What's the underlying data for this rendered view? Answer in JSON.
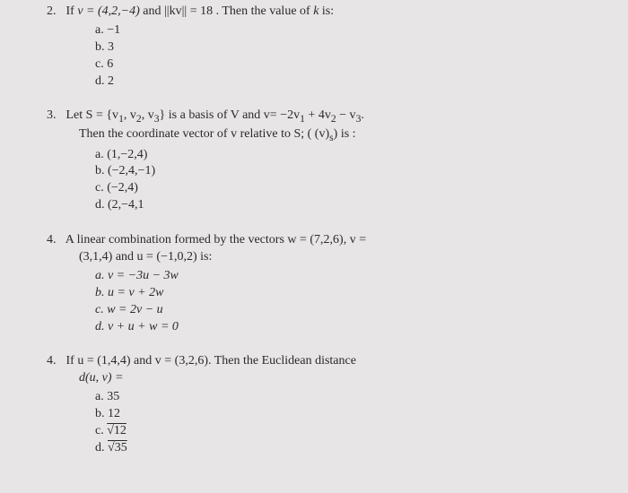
{
  "q2": {
    "number": "2.",
    "text_a": "If ",
    "v_eq": "v = (4,2,−4)",
    "text_b": " and ",
    "norm_eq": "||kv|| = 18",
    "text_c": " . Then the value of ",
    "kvar": "k",
    "text_d": " is:",
    "opts": {
      "a": "a.   −1",
      "b": "b.   3",
      "c": "c.   6",
      "d": "d.   2"
    }
  },
  "q3": {
    "number": "3.",
    "line1_a": "Let S = {v",
    "line1_b": ", v",
    "line1_c": ", v",
    "line1_d": "} is a basis of V and v= −2v",
    "line1_e": " + 4v",
    "line1_f": " − v",
    "line1_g": ".",
    "line2_a": "Then the coordinate vector of v relative to S; ( (v)",
    "line2_b": ") is :",
    "opts": {
      "a": "a.   (1,−2,4)",
      "b": "b.   (−2,4,−1)",
      "c": "c.   (−2,4)",
      "d": "d.   (2,−4,1"
    }
  },
  "q4a": {
    "number": "4.",
    "line1_a": "A linear combination formed by the vectors w = (7,2,6),   v =",
    "line2": "(3,1,4) and u = (−1,0,2) is:",
    "opts": {
      "a": "a.   v = −3u − 3w",
      "b": "b.   u = v + 2w",
      "c": "c.   w = 2v − u",
      "d": "d.   v + u + w = 0"
    }
  },
  "q4b": {
    "number": "4.",
    "line1_a": "If u = (1,4,4)  and  v = (3,2,6).  Then  the  Euclidean  distance",
    "line2": "d(u, v) =",
    "opts": {
      "a": "a.   35",
      "b": "b.   12",
      "c_pre": "c.   ",
      "c_sqrt": "12",
      "d_pre": "d.   ",
      "d_sqrt": "35"
    }
  },
  "subs": {
    "one": "1",
    "two": "2",
    "three": "3",
    "s": "s"
  }
}
